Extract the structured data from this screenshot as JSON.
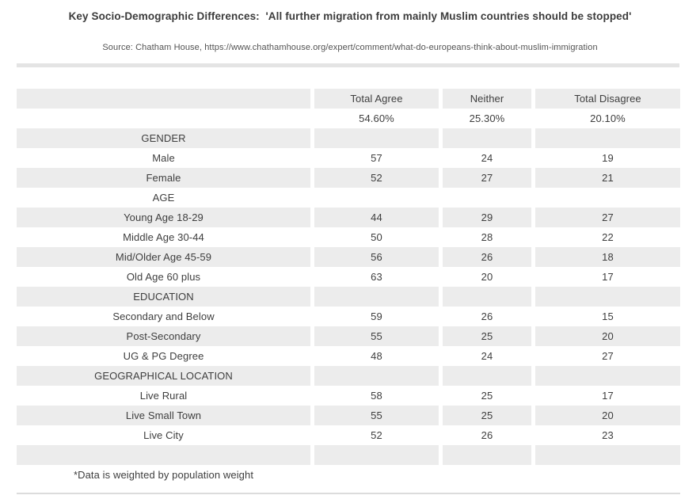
{
  "header": {
    "title": "Key Socio-Demographic Differences:  'All further migration from mainly Muslim countries should be stopped'",
    "source": "Source: Chatham House, https://www.chathamhouse.org/expert/comment/what-do-europeans-think-about-muslim-immigration"
  },
  "footnote": "*Data is weighted by population weight",
  "colors": {
    "row_stripe": "#ececec",
    "divider": "#e4e4e4",
    "text": "#3e3e3e",
    "bottom_line": "#dcdcdc"
  },
  "chart_data": {
    "type": "table",
    "title": "Key Socio-Demographic Differences: 'All further migration from mainly Muslim countries should be stopped'",
    "columns": [
      "",
      "Total Agree",
      "Neither",
      "Total Disagree"
    ],
    "overall_percentages": {
      "total_agree": "54.60%",
      "neither": "25.30%",
      "total_disagree": "20.10%"
    },
    "rows": [
      [
        "",
        "Total Agree",
        "Neither",
        "Total Disagree"
      ],
      [
        "",
        "54.60%",
        "25.30%",
        "20.10%"
      ],
      [
        "GENDER",
        "",
        "",
        ""
      ],
      [
        "Male",
        "57",
        "24",
        "19"
      ],
      [
        "Female",
        "52",
        "27",
        "21"
      ],
      [
        "AGE",
        "",
        "",
        ""
      ],
      [
        "Young Age 18-29",
        "44",
        "29",
        "27"
      ],
      [
        "Middle Age 30-44",
        "50",
        "28",
        "22"
      ],
      [
        "Mid/Older Age 45-59",
        "56",
        "26",
        "18"
      ],
      [
        "Old Age 60 plus",
        "63",
        "20",
        "17"
      ],
      [
        "EDUCATION",
        "",
        "",
        ""
      ],
      [
        "Secondary and Below",
        "59",
        "26",
        "15"
      ],
      [
        "Post-Secondary",
        "55",
        "25",
        "20"
      ],
      [
        "UG & PG Degree",
        "48",
        "24",
        "27"
      ],
      [
        "GEOGRAPHICAL LOCATION",
        "",
        "",
        ""
      ],
      [
        "Live Rural",
        "58",
        "25",
        "17"
      ],
      [
        "Live Small Town",
        "55",
        "25",
        "20"
      ],
      [
        "Live City",
        "52",
        "26",
        "23"
      ],
      [
        "",
        "",
        "",
        ""
      ]
    ],
    "section_labels": [
      "GENDER",
      "AGE",
      "EDUCATION",
      "GEOGRAPHICAL LOCATION"
    ],
    "layout": {
      "striped": true,
      "first_row_color": "#ececec",
      "value_alignment": "center"
    }
  }
}
